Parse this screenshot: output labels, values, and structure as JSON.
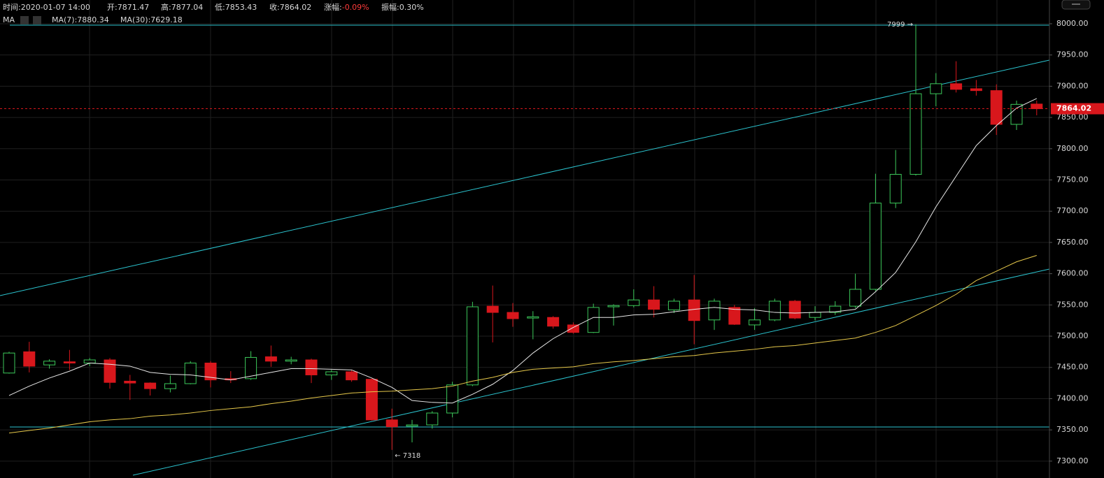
{
  "chart_data": {
    "type": "candlestick",
    "header": [
      {
        "label": "时间:",
        "value": "2020-01-07 14:00"
      },
      {
        "label": "开:",
        "value": "7871.47"
      },
      {
        "label": "高:",
        "value": "7877.04"
      },
      {
        "label": "低:",
        "value": "7853.43"
      },
      {
        "label": "收:",
        "value": "7864.02"
      },
      {
        "label": "涨幅:",
        "value": "-0.09%",
        "value_color": "#ff3b3b"
      },
      {
        "label": "振幅:",
        "value": "0.30%"
      }
    ],
    "legend_title": "MA",
    "up_color": "#3cc95a",
    "down_color": "#d8171c",
    "candles": {
      "open": [
        7441,
        7475,
        7454,
        7459,
        7457,
        7462,
        7428,
        7425,
        7416,
        7424,
        7457,
        7432,
        7432,
        7467,
        7460,
        7462,
        7438,
        7443,
        7431,
        7366,
        7356,
        7358,
        7377,
        7422,
        7548,
        7538,
        7529,
        7530,
        7518,
        7506,
        7547,
        7549,
        7558,
        7542,
        7558,
        7526,
        7546,
        7518,
        7526,
        7556,
        7530,
        7538,
        7548,
        7575,
        7713,
        7759,
        7888,
        7904,
        7896,
        7893,
        7839,
        7871.47
      ],
      "high": [
        7475,
        7491,
        7463,
        7478,
        7465,
        7465,
        7438,
        7426,
        7437,
        7460,
        7460,
        7444,
        7476,
        7485,
        7467,
        7464,
        7446,
        7446,
        7432,
        7384,
        7366,
        7380,
        7427,
        7555,
        7581,
        7553,
        7540,
        7532,
        7522,
        7552,
        7551,
        7575,
        7580,
        7560,
        7598,
        7560,
        7550,
        7545,
        7560,
        7558,
        7548,
        7556,
        7600,
        7760,
        7798,
        7999,
        7921,
        7940,
        7910,
        7903,
        7877,
        7877.04
      ],
      "low": [
        7440,
        7442,
        7448,
        7446,
        7452,
        7416,
        7398,
        7405,
        7410,
        7423,
        7418,
        7425,
        7430,
        7451,
        7455,
        7425,
        7430,
        7427,
        7365,
        7318,
        7330,
        7352,
        7370,
        7420,
        7490,
        7515,
        7495,
        7512,
        7504,
        7505,
        7517,
        7546,
        7530,
        7537,
        7487,
        7510,
        7518,
        7510,
        7524,
        7527,
        7525,
        7534,
        7545,
        7572,
        7705,
        7757,
        7868,
        7890,
        7885,
        7822,
        7830,
        7853.43
      ],
      "close": [
        7473,
        7452,
        7460,
        7457,
        7462,
        7426,
        7425,
        7416,
        7424,
        7457,
        7430,
        7430,
        7466,
        7460,
        7462,
        7438,
        7443,
        7430,
        7366,
        7355,
        7358,
        7377,
        7422,
        7547,
        7538,
        7528,
        7531,
        7516,
        7506,
        7546,
        7549,
        7558,
        7543,
        7556,
        7525,
        7556,
        7519,
        7526,
        7556,
        7529,
        7538,
        7548,
        7575,
        7713,
        7759,
        7888,
        7904,
        7895,
        7893,
        7839,
        7871,
        7864.02
      ]
    },
    "series": [
      {
        "name": "MA(7):7880.34",
        "color": "#e8e8e8",
        "values": [
          7405,
          7420,
          7433,
          7444,
          7457,
          7455,
          7452,
          7442,
          7439,
          7438,
          7434,
          7430,
          7436,
          7442,
          7448,
          7448,
          7447,
          7446,
          7433,
          7418,
          7397,
          7394,
          7393,
          7407,
          7423,
          7445,
          7473,
          7496,
          7514,
          7530,
          7530,
          7534,
          7535,
          7539,
          7543,
          7546,
          7543,
          7542,
          7538,
          7537,
          7538,
          7539,
          7543,
          7571,
          7602,
          7651,
          7707,
          7756,
          7805,
          7837,
          7865,
          7880.34
        ]
      },
      {
        "name": "MA(30):7629.18",
        "color": "#e6c84a",
        "values": [
          7345,
          7349,
          7353,
          7358,
          7363,
          7366,
          7368,
          7372,
          7374,
          7377,
          7381,
          7384,
          7387,
          7392,
          7396,
          7401,
          7405,
          7409,
          7411,
          7412,
          7414,
          7416,
          7420,
          7428,
          7434,
          7442,
          7447,
          7449,
          7451,
          7456,
          7459,
          7461,
          7464,
          7467,
          7469,
          7473,
          7476,
          7479,
          7483,
          7485,
          7489,
          7493,
          7497,
          7506,
          7517,
          7533,
          7549,
          7567,
          7589,
          7604,
          7619,
          7629.18
        ]
      }
    ],
    "annotations": [
      "7999 →",
      "← 7318"
    ],
    "last_price": 7864.02,
    "last_price_color": "#d8171c",
    "ylim": [
      7273,
      8038
    ],
    "yticks": [
      {
        "value": 7300,
        "label": "7300.00"
      },
      {
        "value": 7350,
        "label": "7350.00"
      },
      {
        "value": 7400,
        "label": "7400.00"
      },
      {
        "value": 7450,
        "label": "7450.00"
      },
      {
        "value": 7500,
        "label": "7500.00"
      },
      {
        "value": 7550,
        "label": "7550.00"
      },
      {
        "value": 7600,
        "label": "7600.00"
      },
      {
        "value": 7650,
        "label": "7650.00"
      },
      {
        "value": 7700,
        "label": "7700.00"
      },
      {
        "value": 7750,
        "label": "7750.00"
      },
      {
        "value": 7800,
        "label": "7800.00"
      },
      {
        "value": 7850,
        "label": "7850.00"
      },
      {
        "value": 7900,
        "label": "7900.00"
      },
      {
        "value": 7950,
        "label": "7950.00"
      },
      {
        "value": 8000,
        "label": "8000.00"
      }
    ],
    "grid": true
  }
}
